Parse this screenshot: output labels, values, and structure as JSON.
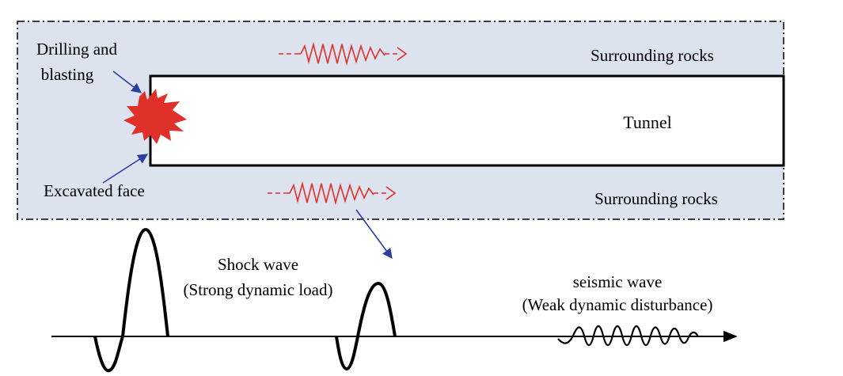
{
  "labels": {
    "drilling_line1": "Drilling and",
    "drilling_line2": "blasting",
    "excavated_face": "Excavated face",
    "surrounding_rocks_top": "Surrounding rocks",
    "surrounding_rocks_bottom": "Surrounding rocks",
    "tunnel": "Tunnel",
    "shock_wave_line1": "Shock wave",
    "shock_wave_line2": "(Strong dynamic load)",
    "seismic_wave_line1": "seismic wave",
    "seismic_wave_line2": "(Weak dynamic disturbance)"
  },
  "colors": {
    "rock_fill": "#dce3ee",
    "blast": "#e0302a",
    "wave_arrow": "#e0302a",
    "pointer_arrow": "#2a3f9e",
    "line": "#000000"
  },
  "icons": {
    "blast": "explosion-burst-icon"
  }
}
